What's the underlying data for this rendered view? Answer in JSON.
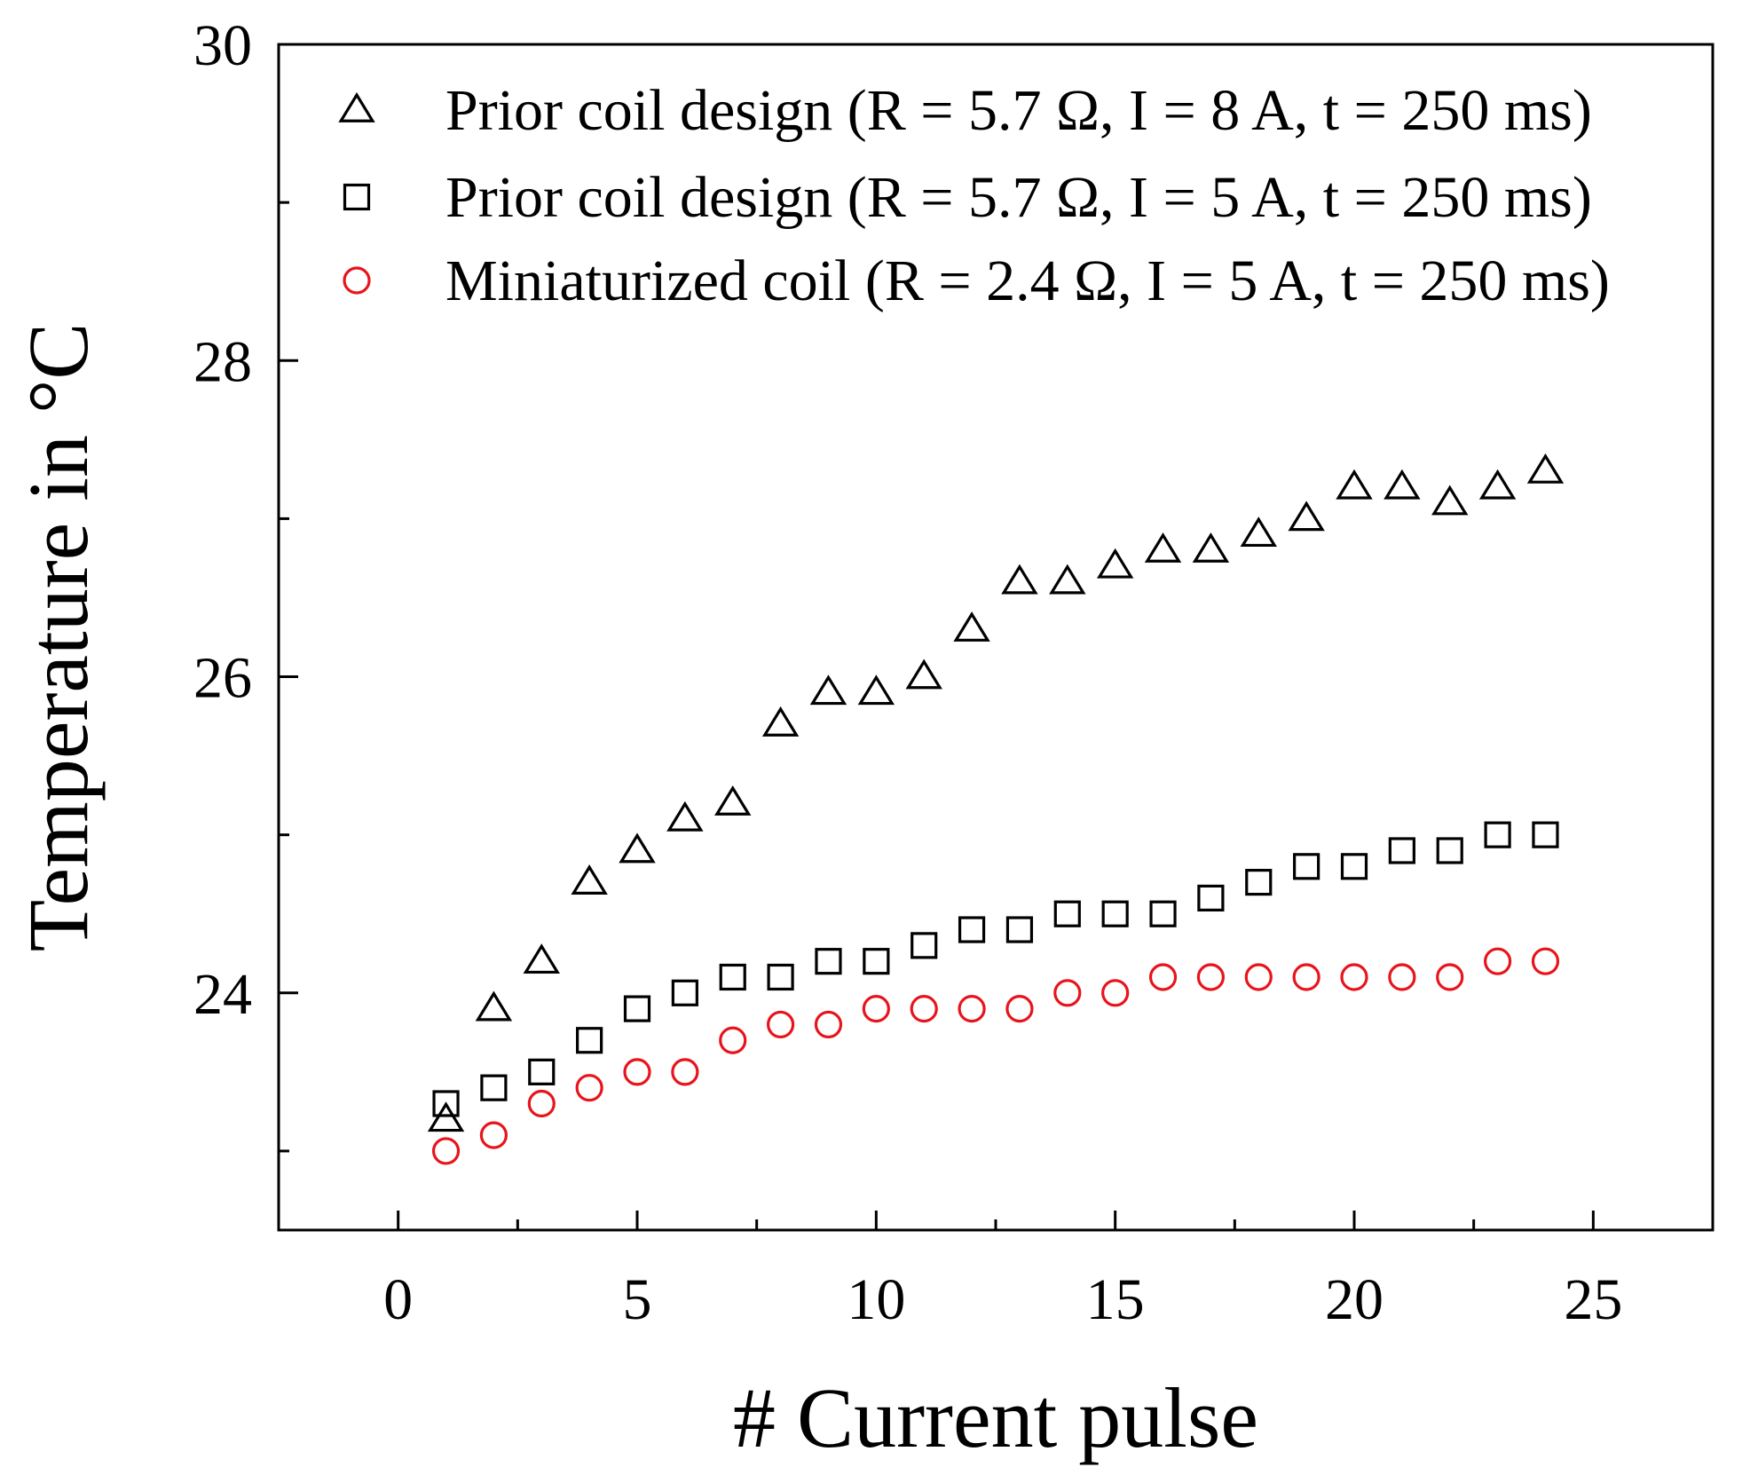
{
  "chart_data": {
    "type": "scatter",
    "title": "",
    "xlabel": "# Current pulse",
    "ylabel": "Temperature in °C",
    "xlim": [
      -2.5,
      27.5
    ],
    "ylim": [
      22.5,
      30
    ],
    "x_ticks": [
      0,
      5,
      10,
      15,
      20,
      25
    ],
    "x_tick_labels": [
      "0",
      "5",
      "10",
      "15",
      "20",
      "25"
    ],
    "x_minor_ticks": [
      2.5,
      7.5,
      12.5,
      17.5,
      22.5
    ],
    "y_ticks": [
      24,
      26,
      28,
      30
    ],
    "y_tick_labels": [
      "24",
      "26",
      "28",
      "30"
    ],
    "y_minor_ticks": [
      23,
      25,
      27,
      29
    ],
    "grid": false,
    "legend_position": "top-left",
    "x": [
      1,
      2,
      3,
      4,
      5,
      6,
      7,
      8,
      9,
      10,
      11,
      12,
      13,
      14,
      15,
      16,
      17,
      18,
      19,
      20,
      21,
      22,
      23,
      24
    ],
    "series": [
      {
        "name": "Prior coil design (R = 5.7 Ω, I = 8 A, t = 250 ms)",
        "marker": "triangle",
        "color": "#000000",
        "values": [
          23.2,
          23.9,
          24.2,
          24.7,
          24.9,
          25.1,
          25.2,
          25.7,
          25.9,
          25.9,
          26.0,
          26.3,
          26.6,
          26.6,
          26.7,
          26.8,
          26.8,
          26.9,
          27.0,
          27.2,
          27.2,
          27.1,
          27.2,
          27.3
        ]
      },
      {
        "name": "Prior coil design (R = 5.7 Ω, I = 5 A, t = 250 ms)",
        "marker": "square",
        "color": "#000000",
        "values": [
          23.3,
          23.4,
          23.5,
          23.7,
          23.9,
          24.0,
          24.1,
          24.1,
          24.2,
          24.2,
          24.3,
          24.4,
          24.4,
          24.5,
          24.5,
          24.5,
          24.6,
          24.7,
          24.8,
          24.8,
          24.9,
          24.9,
          25.0,
          25.0
        ]
      },
      {
        "name": "Miniaturized coil (R = 2.4 Ω, I = 5 A, t  = 250 ms)",
        "marker": "circle",
        "color": "#e8141c",
        "values": [
          23.0,
          23.1,
          23.3,
          23.4,
          23.5,
          23.5,
          23.7,
          23.8,
          23.8,
          23.9,
          23.9,
          23.9,
          23.9,
          24.0,
          24.0,
          24.1,
          24.1,
          24.1,
          24.1,
          24.1,
          24.1,
          24.1,
          24.2,
          24.2
        ]
      }
    ]
  }
}
